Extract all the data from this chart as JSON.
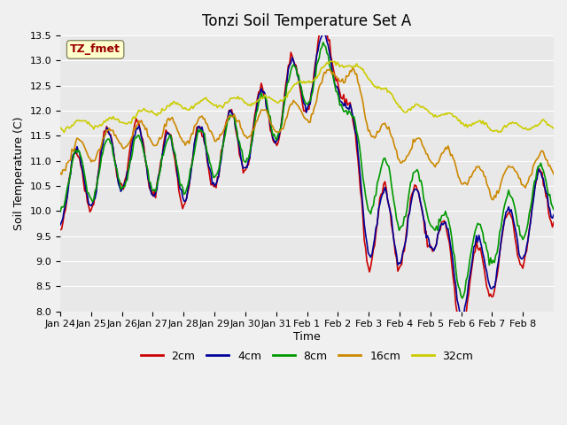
{
  "title": "Tonzi Soil Temperature Set A",
  "xlabel": "Time",
  "ylabel": "Soil Temperature (C)",
  "ylim": [
    8.0,
    13.5
  ],
  "yticks": [
    8.0,
    8.5,
    9.0,
    9.5,
    10.0,
    10.5,
    11.0,
    11.5,
    12.0,
    12.5,
    13.0,
    13.5
  ],
  "colors": {
    "2cm": "#cc0000",
    "4cm": "#000099",
    "8cm": "#009900",
    "16cm": "#cc8800",
    "32cm": "#cccc00"
  },
  "legend_label": "TZ_fmet",
  "legend_box_color": "#ffffcc",
  "legend_text_color": "#990000",
  "plot_bg_color": "#e8e8e8",
  "fig_bg_color": "#f0f0f0",
  "xtick_labels": [
    "Jan 24",
    "Jan 25",
    "Jan 26",
    "Jan 27",
    "Jan 28",
    "Jan 29",
    "Jan 30",
    "Jan 31",
    "Feb 1",
    "Feb 2",
    "Feb 3",
    "Feb 4",
    "Feb 5",
    "Feb 6",
    "Feb 7",
    "Feb 8"
  ],
  "linewidth": 1.2
}
